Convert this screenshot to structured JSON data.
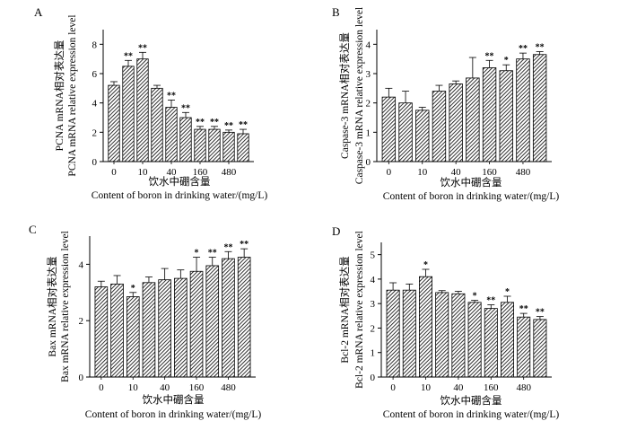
{
  "chart_data": [
    {
      "panel": "A",
      "type": "bar",
      "categories": [
        "0",
        "",
        "10",
        "",
        "40",
        "",
        "160",
        "",
        "480",
        ""
      ],
      "values": [
        5.2,
        6.5,
        7.0,
        5.0,
        3.7,
        3.0,
        2.2,
        2.2,
        2.0,
        1.9
      ],
      "errors": [
        0.25,
        0.4,
        0.45,
        0.2,
        0.5,
        0.35,
        0.2,
        0.2,
        0.15,
        0.3
      ],
      "significance": [
        "",
        "**",
        "**",
        "",
        "**",
        "**",
        "**",
        "**",
        "**",
        "**"
      ],
      "ylim": [
        0,
        9
      ],
      "yticks": [
        0,
        2,
        4,
        6,
        8
      ],
      "xlabel_cn": "饮水中硼含量",
      "xlabel_en": "Content of boron in drinking water/(mg/L)",
      "ylabel_cn": "PCNA  mRNA相对表达量",
      "ylabel_en": "PCNA mRNA relative expression level",
      "ylabel_gene": "PCNA"
    },
    {
      "panel": "B",
      "type": "bar",
      "categories": [
        "0",
        "",
        "10",
        "",
        "40",
        "",
        "160",
        "",
        "480",
        ""
      ],
      "values": [
        2.2,
        2.0,
        1.75,
        2.4,
        2.65,
        2.85,
        3.2,
        3.1,
        3.5,
        3.65
      ],
      "errors": [
        0.3,
        0.4,
        0.1,
        0.2,
        0.1,
        0.7,
        0.25,
        0.2,
        0.2,
        0.1
      ],
      "significance": [
        "",
        "",
        "",
        "",
        "",
        "",
        "**",
        "*",
        "**",
        "**"
      ],
      "ylim": [
        0,
        4.5
      ],
      "yticks": [
        0,
        1,
        2,
        3,
        4
      ],
      "xlabel_cn": "饮水中硼含量",
      "xlabel_en": "Content of boron in drinking water/(mg/L)",
      "ylabel_cn": "Caspase-3  mRNA相对表达量",
      "ylabel_en": "Caspase-3 mRNA relative expression level",
      "ylabel_gene": "Caspase-3"
    },
    {
      "panel": "C",
      "type": "bar",
      "categories": [
        "0",
        "",
        "10",
        "",
        "40",
        "",
        "160",
        "",
        "480",
        ""
      ],
      "values": [
        3.2,
        3.3,
        2.85,
        3.35,
        3.45,
        3.5,
        3.75,
        3.95,
        4.2,
        4.25
      ],
      "errors": [
        0.2,
        0.3,
        0.15,
        0.2,
        0.4,
        0.3,
        0.5,
        0.3,
        0.25,
        0.3
      ],
      "significance": [
        "",
        "",
        "*",
        "",
        "",
        "",
        "*",
        "**",
        "**",
        "**"
      ],
      "ylim": [
        0,
        5
      ],
      "yticks": [
        0,
        2,
        4
      ],
      "xlabel_cn": "饮水中硼含量",
      "xlabel_en": "Content of boron in drinking water/(mg/L)",
      "ylabel_cn": "Bax  mRNA相对表达量",
      "ylabel_en": "Bax mRNA relative expression level",
      "ylabel_gene": "Bax"
    },
    {
      "panel": "D",
      "type": "bar",
      "categories": [
        "0",
        "",
        "10",
        "",
        "40",
        "",
        "160",
        "",
        "480",
        ""
      ],
      "values": [
        3.55,
        3.55,
        4.1,
        3.45,
        3.4,
        3.05,
        2.8,
        3.05,
        2.45,
        2.35
      ],
      "errors": [
        0.3,
        0.25,
        0.3,
        0.08,
        0.1,
        0.08,
        0.15,
        0.25,
        0.15,
        0.12
      ],
      "significance": [
        "",
        "",
        "*",
        "",
        "",
        "*",
        "**",
        "*",
        "**",
        "**"
      ],
      "ylim": [
        0,
        5.5
      ],
      "yticks": [
        0,
        1,
        2,
        3,
        4,
        5
      ],
      "xlabel_cn": "饮水中硼含量",
      "xlabel_en": "Content of boron in drinking water/(mg/L)",
      "ylabel_cn": "Bcl-2  mRNA相对表达量",
      "ylabel_en": "Bcl-2 mRNA relative expression level",
      "ylabel_gene": "Bcl-2"
    }
  ]
}
